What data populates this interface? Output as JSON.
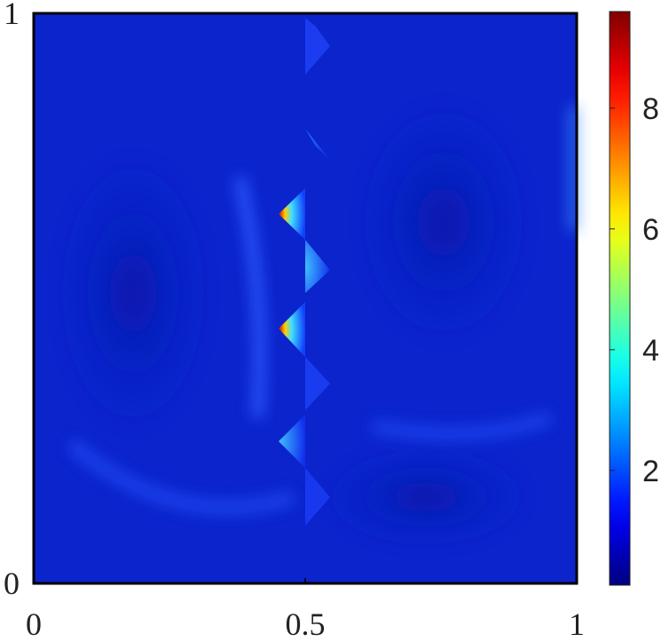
{
  "chart_data": {
    "type": "heatmap",
    "xlim": [
      0,
      1
    ],
    "xticks": [
      0,
      0.5,
      1
    ],
    "ylim": [
      0,
      1
    ],
    "yticks": [
      0,
      1
    ],
    "colorbar": {
      "colormap": "jet",
      "clim": [
        0.1,
        9.6
      ],
      "ticks": [
        2,
        4,
        6,
        8
      ]
    }
  }
}
